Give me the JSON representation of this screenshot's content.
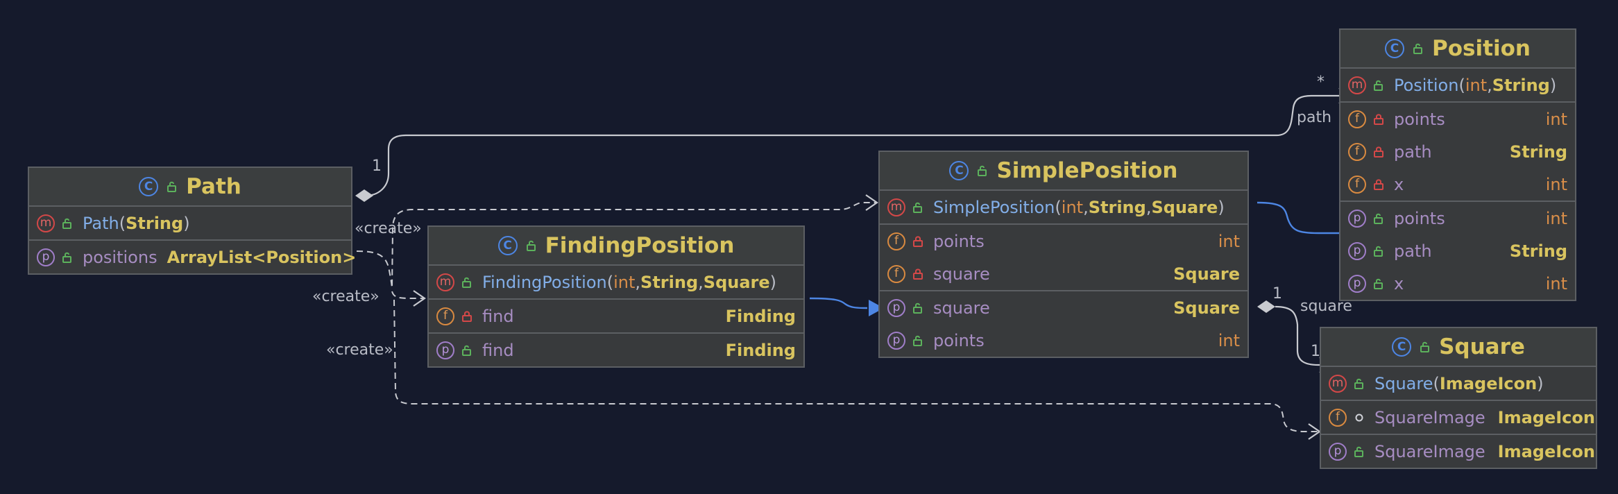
{
  "classes": {
    "position": {
      "name": "Position",
      "constructor": {
        "name": "Position",
        "open": "(",
        "p1": "int",
        "sep1": ", ",
        "p2": "String",
        "close": ")"
      },
      "fields": [
        {
          "name": "points",
          "type": "int"
        },
        {
          "name": "path",
          "type": "String"
        },
        {
          "name": "x",
          "type": "int"
        }
      ],
      "properties": [
        {
          "name": "points",
          "type": "int"
        },
        {
          "name": "path",
          "type": "String"
        },
        {
          "name": "x",
          "type": "int"
        }
      ]
    },
    "path": {
      "name": "Path",
      "constructor": {
        "name": "Path",
        "open": "(",
        "p1": "String",
        "close": ")"
      },
      "properties": [
        {
          "name": "positions",
          "type_prefix": "ArrayList<",
          "type_arg": "Position",
          "type_suffix": ">"
        }
      ]
    },
    "simple_position": {
      "name": "SimplePosition",
      "constructor": {
        "name": "SimplePosition",
        "open": "(",
        "p1": "int",
        "sep1": ", ",
        "p2": "String",
        "sep2": ", ",
        "p3": "Square",
        "close": ")"
      },
      "fields": [
        {
          "name": "points",
          "type": "int"
        },
        {
          "name": "square",
          "type": "Square"
        }
      ],
      "properties": [
        {
          "name": "square",
          "type": "Square"
        },
        {
          "name": "points",
          "type": "int"
        }
      ]
    },
    "finding_position": {
      "name": "FindingPosition",
      "constructor": {
        "name": "FindingPosition",
        "open": "(",
        "p1": "int",
        "sep1": ", ",
        "p2": "String",
        "sep2": ", ",
        "p3": "Square",
        "close": ")"
      },
      "fields": [
        {
          "name": "find",
          "type": "Finding"
        }
      ],
      "properties": [
        {
          "name": "find",
          "type": "Finding"
        }
      ]
    },
    "square": {
      "name": "Square",
      "constructor": {
        "name": "Square",
        "open": "(",
        "p1": "ImageIcon",
        "close": ")"
      },
      "fields": [
        {
          "name": "SquareImage",
          "type": "ImageIcon"
        }
      ],
      "properties": [
        {
          "name": "SquareImage",
          "type": "ImageIcon"
        }
      ]
    }
  },
  "edges": {
    "path_position": {
      "source_mult": "1",
      "target_mult": "*",
      "role": "path"
    },
    "simple_square": {
      "source_mult": "1",
      "target_mult": "1",
      "role": "square"
    },
    "create_label": "«create»"
  },
  "colors": {
    "background": "#151a2c",
    "class_fill": "#383a3c",
    "class_border": "#5c5f63",
    "class_name": "#d9c45f",
    "method": "#82aee8",
    "field": "#a78dc2",
    "primitive": "#d98e49",
    "reference": "#d9c45f",
    "inheritance": "#4d86e4",
    "association": "#c8cad0"
  },
  "icons": {
    "class": "class-icon",
    "method": "method-icon",
    "field": "field-icon",
    "property": "property-icon",
    "public": "unlock-icon",
    "private": "lock-icon",
    "package": "package-private-icon"
  }
}
